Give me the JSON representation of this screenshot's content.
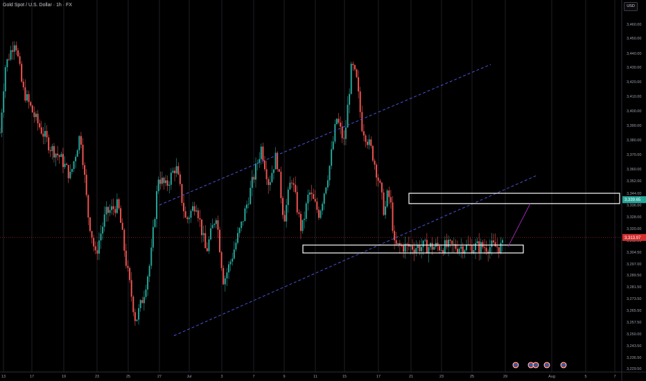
{
  "header": {
    "symbol_title": "Gold Spot / U.S. Dollar · 1h · FX",
    "currency_button": "USD"
  },
  "colors": {
    "background": "#000000",
    "grid": "#1f2128",
    "candle_up": "#26a69a",
    "candle_down": "#ef5350",
    "channel": "#4a55d8",
    "zone_border": "#ffffff",
    "projection": "#9c27b0",
    "current_price_badge": "#d32f2f",
    "target_badge": "#26a69a"
  },
  "chart_data": {
    "type": "candlestick",
    "timeframe": "1h",
    "x_axis_labels": [
      "13",
      "17",
      "19",
      "23",
      "25",
      "27",
      "Jul",
      "3",
      "7",
      "9",
      "11",
      "15",
      "17",
      "21",
      "23",
      "25",
      "29",
      "Aug",
      "5",
      "7"
    ],
    "y_axis_labels": [
      "3,460.00",
      "3,450.00",
      "3,440.00",
      "3,430.00",
      "3,420.00",
      "3,410.00",
      "3,400.00",
      "3,390.00",
      "3,380.00",
      "3,370.00",
      "3,360.00",
      "3,352.00",
      "3,344.00",
      "3,336.00",
      "3,328.00",
      "3,320.00",
      "3,312.00",
      "3,304.50",
      "3,297.00",
      "3,289.50",
      "3,281.50",
      "3,273.50",
      "3,265.50",
      "3,257.50",
      "3,250.00",
      "3,243.50",
      "3,236.50",
      "3,229.50"
    ],
    "price_path": [
      [
        0,
        3385
      ],
      [
        0.01,
        3430
      ],
      [
        0.02,
        3440
      ],
      [
        0.03,
        3450
      ],
      [
        0.045,
        3415
      ],
      [
        0.07,
        3395
      ],
      [
        0.1,
        3375
      ],
      [
        0.12,
        3368
      ],
      [
        0.14,
        3355
      ],
      [
        0.16,
        3385
      ],
      [
        0.175,
        3330
      ],
      [
        0.19,
        3302
      ],
      [
        0.21,
        3330
      ],
      [
        0.235,
        3336
      ],
      [
        0.25,
        3300
      ],
      [
        0.27,
        3258
      ],
      [
        0.285,
        3275
      ],
      [
        0.3,
        3300
      ],
      [
        0.315,
        3355
      ],
      [
        0.33,
        3348
      ],
      [
        0.35,
        3362
      ],
      [
        0.37,
        3325
      ],
      [
        0.39,
        3338
      ],
      [
        0.41,
        3304
      ],
      [
        0.43,
        3330
      ],
      [
        0.445,
        3285
      ],
      [
        0.46,
        3300
      ],
      [
        0.48,
        3322
      ],
      [
        0.5,
        3348
      ],
      [
        0.52,
        3375
      ],
      [
        0.535,
        3350
      ],
      [
        0.55,
        3370
      ],
      [
        0.565,
        3326
      ],
      [
        0.58,
        3355
      ],
      [
        0.6,
        3318
      ],
      [
        0.615,
        3345
      ],
      [
        0.635,
        3330
      ],
      [
        0.655,
        3360
      ],
      [
        0.67,
        3395
      ],
      [
        0.685,
        3378
      ],
      [
        0.7,
        3432
      ],
      [
        0.71,
        3420
      ],
      [
        0.72,
        3390
      ],
      [
        0.74,
        3372
      ],
      [
        0.755,
        3350
      ],
      [
        0.765,
        3330
      ],
      [
        0.772,
        3345
      ],
      [
        0.778,
        3335
      ],
      [
        0.785,
        3308
      ]
    ],
    "current_price": "3,313.97",
    "target_price": "3,339.65",
    "current_price_value": 3313.97,
    "target_price_value": 3339.65,
    "ylim": [
      3229.5,
      3460
    ],
    "channel": {
      "upper": {
        "from": {
          "x": "27",
          "y": 3336
        },
        "to": {
          "x": "29",
          "y": 3432
        }
      },
      "lower": {
        "from": {
          "x": "27",
          "y": 3249
        },
        "to": {
          "x": "29",
          "y": 3356
        }
      }
    },
    "zones": [
      {
        "name": "resistance-zone",
        "from_x": "21",
        "to_x": "5",
        "y_top": 3344,
        "y_bottom": 3337
      },
      {
        "name": "support-zone",
        "from_x": "9",
        "to_x": "29",
        "y_top": 3309,
        "y_bottom": 3304
      }
    ],
    "projection": {
      "from": {
        "x": "29",
        "y": 3308
      },
      "to": {
        "x": "29",
        "y": 3337
      }
    },
    "event_markers_count": 4
  }
}
